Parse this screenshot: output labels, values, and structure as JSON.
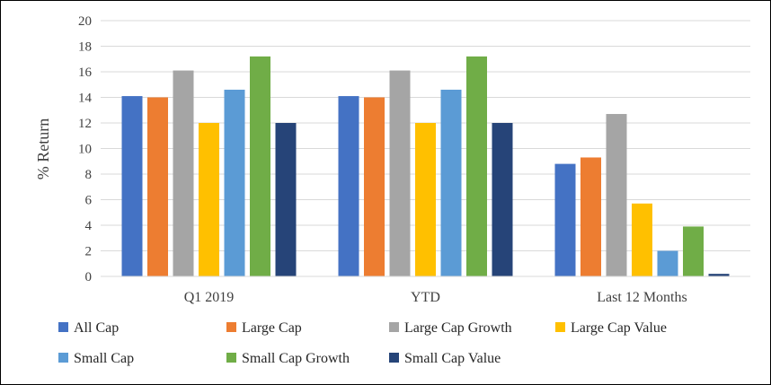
{
  "chart_data": {
    "type": "bar",
    "title": "",
    "xlabel": "",
    "ylabel": "% Return",
    "ylim": [
      0,
      20
    ],
    "yticks": [
      0,
      2,
      4,
      6,
      8,
      10,
      12,
      14,
      16,
      18,
      20
    ],
    "grid": true,
    "legend_position": "bottom",
    "categories": [
      "Q1 2019",
      "YTD",
      "Last 12 Months"
    ],
    "series": [
      {
        "name": "All Cap",
        "color": "#4472C4",
        "values": [
          14.1,
          14.1,
          8.8
        ]
      },
      {
        "name": "Large Cap",
        "color": "#ED7D31",
        "values": [
          14.0,
          14.0,
          9.3
        ]
      },
      {
        "name": "Large Cap Growth",
        "color": "#A5A5A5",
        "values": [
          16.1,
          16.1,
          12.7
        ]
      },
      {
        "name": "Large Cap Value",
        "color": "#FFC000",
        "values": [
          12.0,
          12.0,
          5.7
        ]
      },
      {
        "name": "Small Cap",
        "color": "#5B9BD5",
        "values": [
          14.6,
          14.6,
          2.0
        ]
      },
      {
        "name": "Small Cap Growth",
        "color": "#70AD47",
        "values": [
          17.2,
          17.2,
          3.9
        ]
      },
      {
        "name": "Small Cap Value",
        "color": "#264478",
        "values": [
          12.0,
          12.0,
          0.2
        ]
      }
    ]
  }
}
